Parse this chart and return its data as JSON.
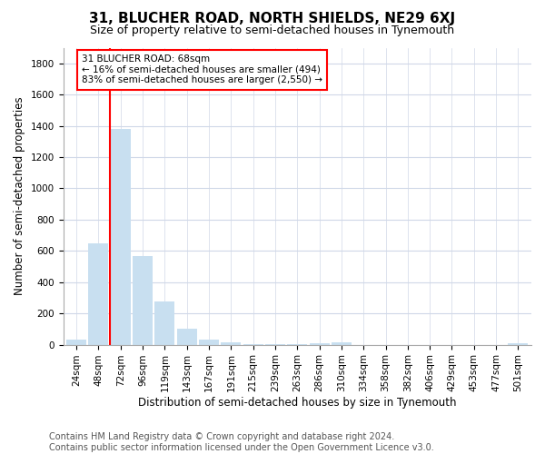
{
  "title": "31, BLUCHER ROAD, NORTH SHIELDS, NE29 6XJ",
  "subtitle": "Size of property relative to semi-detached houses in Tynemouth",
  "xlabel": "Distribution of semi-detached houses by size in Tynemouth",
  "ylabel": "Number of semi-detached properties",
  "annotation_title": "31 BLUCHER ROAD: 68sqm",
  "annotation_line1": "← 16% of semi-detached houses are smaller (494)",
  "annotation_line2": "83% of semi-detached houses are larger (2,550) →",
  "footer1": "Contains HM Land Registry data © Crown copyright and database right 2024.",
  "footer2": "Contains public sector information licensed under the Open Government Licence v3.0.",
  "categories": [
    "24sqm",
    "48sqm",
    "72sqm",
    "96sqm",
    "119sqm",
    "143sqm",
    "167sqm",
    "191sqm",
    "215sqm",
    "239sqm",
    "263sqm",
    "286sqm",
    "310sqm",
    "334sqm",
    "358sqm",
    "382sqm",
    "406sqm",
    "429sqm",
    "453sqm",
    "477sqm",
    "501sqm"
  ],
  "values": [
    30,
    650,
    1380,
    565,
    275,
    100,
    35,
    15,
    5,
    3,
    2,
    10,
    15,
    0,
    0,
    0,
    0,
    0,
    0,
    0,
    10
  ],
  "bar_color": "#c8dff0",
  "highlight_color": "#ff0000",
  "ylim": [
    0,
    1900
  ],
  "yticks": [
    0,
    200,
    400,
    600,
    800,
    1000,
    1200,
    1400,
    1600,
    1800
  ],
  "annotation_box_color": "#ff0000",
  "grid_color": "#d0d8e8",
  "background_color": "#ffffff",
  "title_fontsize": 11,
  "subtitle_fontsize": 9,
  "label_fontsize": 8.5,
  "tick_fontsize": 7.5,
  "footer_fontsize": 7
}
